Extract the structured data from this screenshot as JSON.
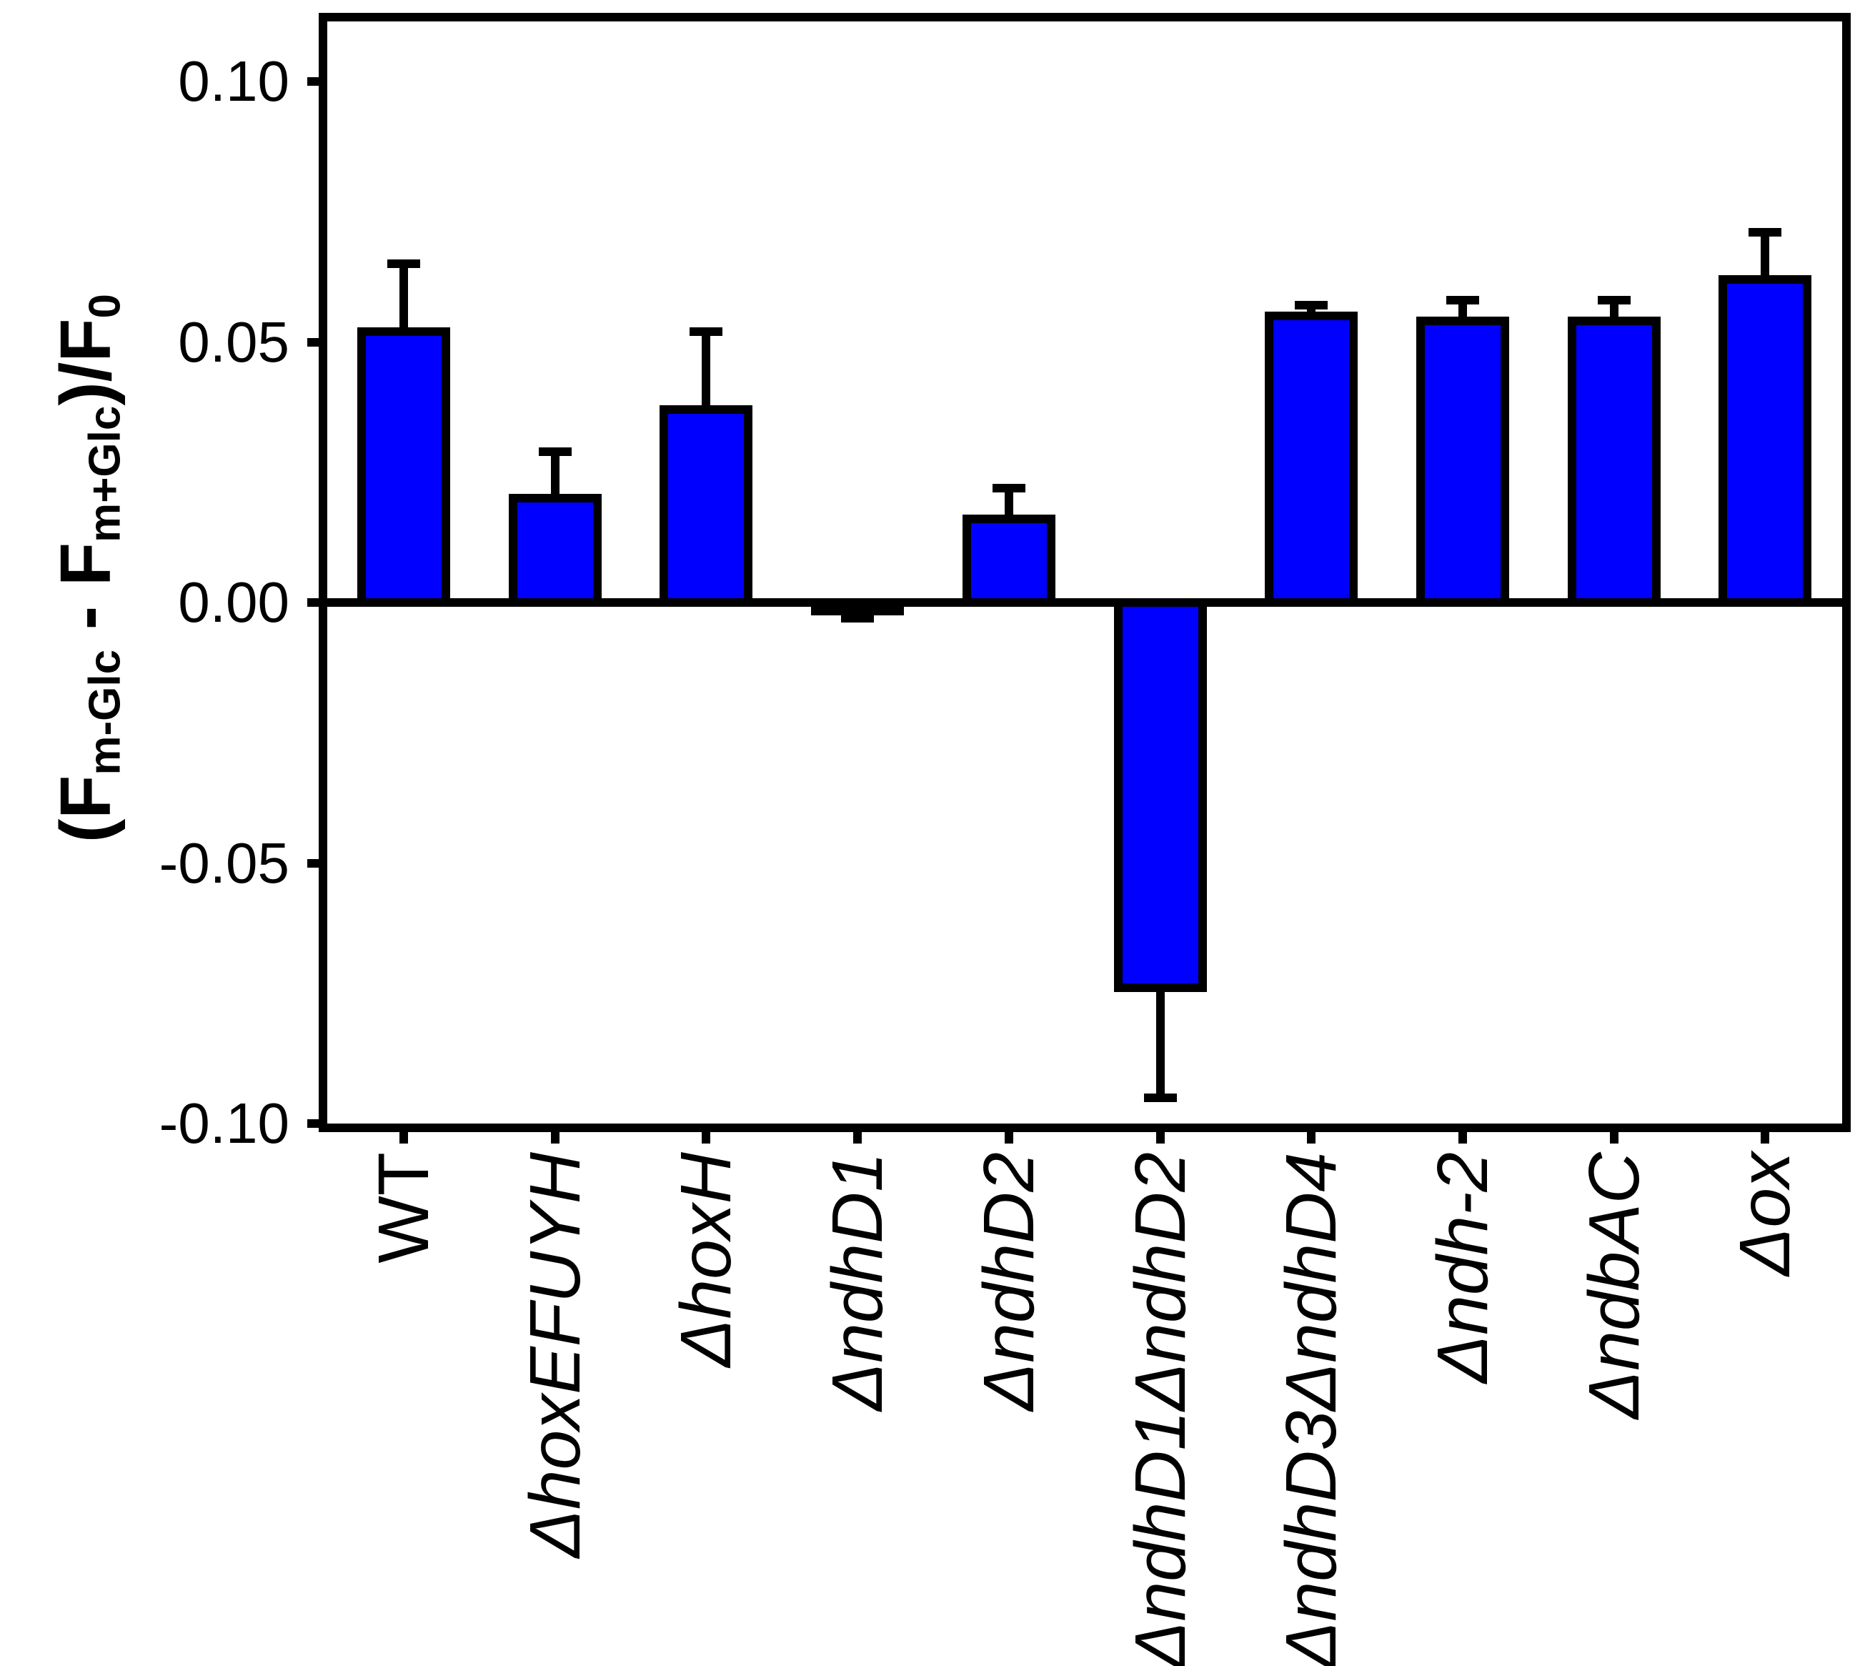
{
  "figure": {
    "background": "#FFFFFF"
  },
  "chart_data": {
    "type": "bar",
    "title": "",
    "ylabel_plain": "(F m-Glc - F m+Glc )/F 0",
    "ylabel_segments": [
      {
        "text": "(F",
        "sub": false
      },
      {
        "text": "m-Glc",
        "sub": true
      },
      {
        "text": " - F",
        "sub": false
      },
      {
        "text": "m+Glc",
        "sub": true
      },
      {
        "text": ")/F",
        "sub": false
      },
      {
        "text": "0",
        "sub": true
      }
    ],
    "categories": [
      "WT",
      "ΔhoxEFUYH",
      "ΔhoxH",
      "ΔndhD1",
      "ΔndhD2",
      "ΔndhD1ΔndhD2",
      "ΔndhD3ΔndhD4",
      "Δndh-2",
      "ΔndbAC",
      "Δox"
    ],
    "categories_italic": [
      false,
      true,
      true,
      true,
      true,
      true,
      true,
      true,
      true,
      true
    ],
    "values": [
      0.052,
      0.02,
      0.037,
      -0.001,
      0.016,
      -0.074,
      0.055,
      0.054,
      0.054,
      0.062
    ],
    "errors": [
      0.013,
      0.009,
      0.015,
      0.002,
      0.006,
      0.021,
      0.002,
      0.004,
      0.004,
      0.009
    ],
    "error_style": "one-sided, pointing away from zero, flat caps",
    "yticks": [
      0.1,
      0.05,
      0.0,
      -0.05,
      -0.1
    ],
    "ytick_labels": [
      "0.10",
      "0.05",
      "0.00",
      "-0.05",
      "-0.10"
    ],
    "ylim": [
      -0.1,
      0.111
    ],
    "xlabel": "",
    "grid": false,
    "legend": null,
    "bar_fill": "#0000FF",
    "bar_outline": "#000000",
    "axis_color": "#000000"
  }
}
